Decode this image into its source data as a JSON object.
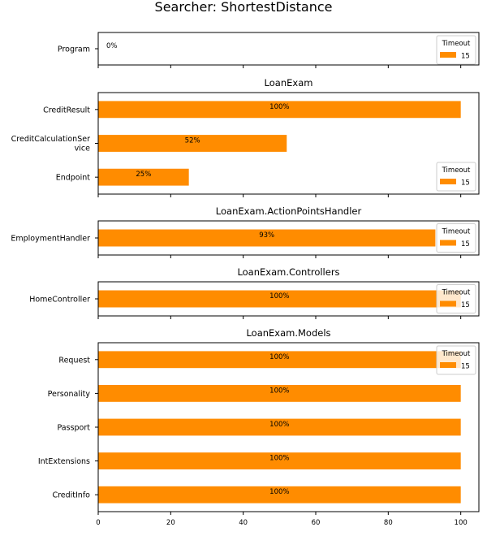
{
  "title": "Searcher: ShortestDistance",
  "colors": {
    "bar": "#ff8c00",
    "axis": "#000000",
    "legend_border": "#cccccc"
  },
  "chart_data": [
    {
      "type": "bar",
      "orientation": "horizontal",
      "title": "",
      "categories": [
        "Program"
      ],
      "values": [
        0
      ],
      "labels": [
        "0%"
      ],
      "xlim": [
        0,
        105
      ],
      "legend": {
        "title": "Timeout",
        "entries": [
          "15"
        ],
        "placement": "top-right"
      }
    },
    {
      "type": "bar",
      "orientation": "horizontal",
      "title": "LoanExam",
      "categories": [
        "CreditResult",
        "CreditCalculationService",
        "Endpoint"
      ],
      "values": [
        100,
        52,
        25
      ],
      "labels": [
        "100%",
        "52%",
        "25%"
      ],
      "xlim": [
        0,
        105
      ],
      "legend": {
        "title": "Timeout",
        "entries": [
          "15"
        ],
        "placement": "lower-right"
      }
    },
    {
      "type": "bar",
      "orientation": "horizontal",
      "title": "LoanExam.ActionPointsHandler",
      "categories": [
        "EmploymentHandler"
      ],
      "values": [
        93
      ],
      "labels": [
        "93%"
      ],
      "xlim": [
        0,
        105
      ],
      "legend": {
        "title": "Timeout",
        "entries": [
          "15"
        ],
        "placement": "right"
      }
    },
    {
      "type": "bar",
      "orientation": "horizontal",
      "title": "LoanExam.Controllers",
      "categories": [
        "HomeController"
      ],
      "values": [
        100
      ],
      "labels": [
        "100%"
      ],
      "xlim": [
        0,
        105
      ],
      "legend": {
        "title": "Timeout",
        "entries": [
          "15"
        ],
        "placement": "right"
      }
    },
    {
      "type": "bar",
      "orientation": "horizontal",
      "title": "LoanExam.Models",
      "categories": [
        "Request",
        "Personality",
        "Passport",
        "IntExtensions",
        "CreditInfo"
      ],
      "values": [
        100,
        100,
        100,
        100,
        100
      ],
      "labels": [
        "100%",
        "100%",
        "100%",
        "100%",
        "100%"
      ],
      "xlim": [
        0,
        105
      ],
      "xticks": [
        "0",
        "20",
        "40",
        "60",
        "80",
        "100"
      ],
      "legend": {
        "title": "Timeout",
        "entries": [
          "15"
        ],
        "placement": "top-right"
      }
    }
  ]
}
